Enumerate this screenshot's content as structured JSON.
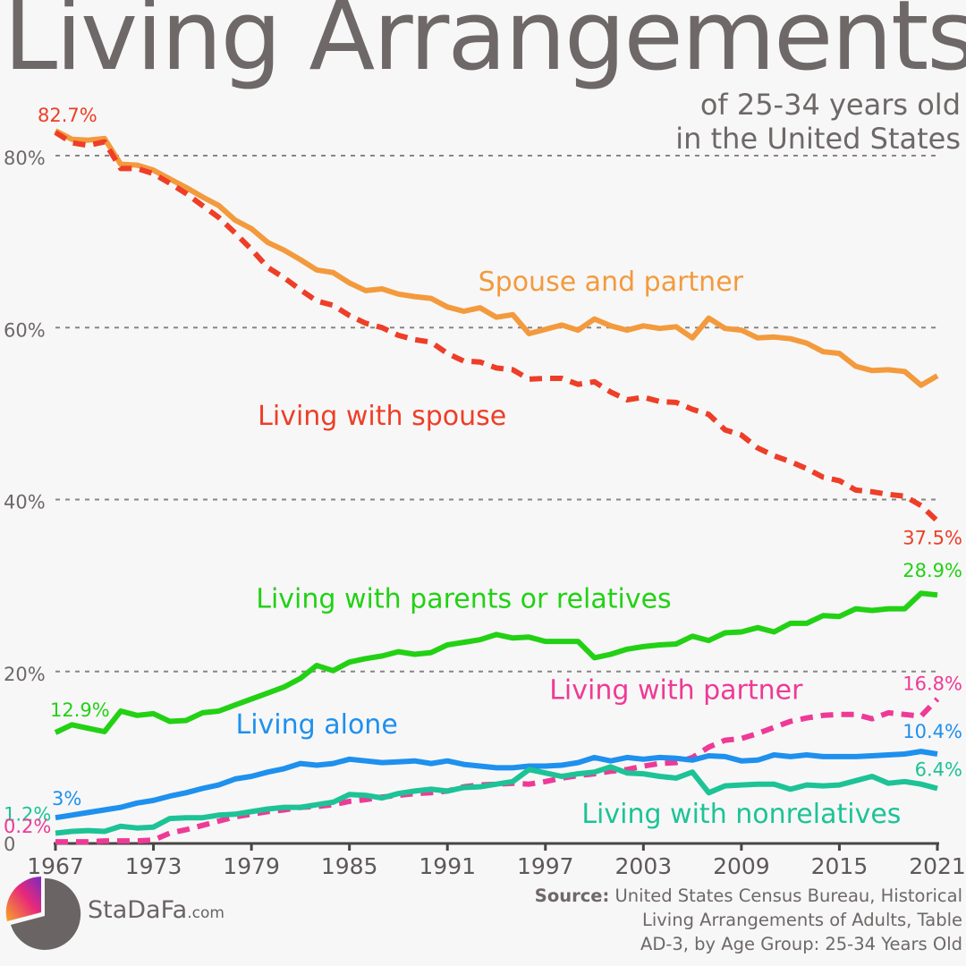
{
  "title": "Living Arrangements",
  "subtitle_line1": "of 25-34 years old",
  "subtitle_line2": "in the United States",
  "brand": {
    "name": "StaDaFa",
    "domain": ".com"
  },
  "source": {
    "label": "Source:",
    "line1": "United States Census Bureau, Historical",
    "line2": "Living Arrangements of Adults, Table",
    "line3": "AD-3, by Age Group: 25-34 Years Old"
  },
  "chart_data": {
    "type": "line",
    "x": [
      1967,
      1968,
      1969,
      1970,
      1971,
      1972,
      1973,
      1974,
      1975,
      1976,
      1977,
      1978,
      1979,
      1980,
      1981,
      1982,
      1983,
      1984,
      1985,
      1986,
      1987,
      1988,
      1989,
      1990,
      1991,
      1992,
      1993,
      1994,
      1995,
      1996,
      1997,
      1998,
      1999,
      2000,
      2001,
      2002,
      2003,
      2004,
      2005,
      2006,
      2007,
      2008,
      2009,
      2010,
      2011,
      2012,
      2013,
      2014,
      2015,
      2016,
      2017,
      2018,
      2019,
      2020,
      2021
    ],
    "xlim": [
      1967,
      2021
    ],
    "ylim": [
      0,
      85
    ],
    "y_ticks": [
      0,
      20,
      40,
      60,
      80
    ],
    "y_tick_labels": [
      "0",
      "20%",
      "40%",
      "60%",
      "80%"
    ],
    "x_ticks": [
      1967,
      1973,
      1979,
      1985,
      1991,
      1997,
      2003,
      2009,
      2015,
      2021
    ],
    "x_tick_labels": [
      "1967",
      "1973",
      "1979",
      "1985",
      "1991",
      "1997",
      "2003",
      "2009",
      "2015",
      "2021"
    ],
    "grid": "horizontal dashed",
    "series": [
      {
        "name": "Spouse and partner",
        "color": "#f39a3d",
        "dashed": false,
        "values": [
          82.9,
          81.9,
          81.8,
          82.0,
          79.0,
          78.9,
          78.3,
          77.3,
          76.3,
          75.2,
          74.2,
          72.5,
          71.5,
          69.9,
          69.0,
          67.9,
          66.7,
          66.4,
          65.2,
          64.3,
          64.5,
          63.9,
          63.6,
          63.4,
          62.4,
          61.9,
          62.3,
          61.2,
          61.5,
          59.3,
          59.8,
          60.3,
          59.7,
          61.0,
          60.2,
          59.7,
          60.2,
          59.9,
          60.1,
          58.8,
          61.1,
          59.9,
          59.7,
          58.8,
          58.9,
          58.7,
          58.2,
          57.2,
          57.0,
          55.5,
          55.0,
          55.1,
          54.9,
          53.3,
          54.4
        ],
        "label_pos": [
          2001,
          64.3
        ]
      },
      {
        "name": "Living with spouse",
        "color": "#ee3e27",
        "dashed": true,
        "values": [
          82.7,
          81.5,
          81.2,
          81.6,
          78.5,
          78.5,
          77.9,
          76.8,
          75.6,
          74.2,
          72.8,
          71.0,
          69.1,
          67.0,
          65.8,
          64.4,
          63.1,
          62.6,
          61.4,
          60.5,
          60.0,
          59.1,
          58.6,
          58.3,
          57.0,
          56.1,
          56.0,
          55.3,
          55.1,
          54.0,
          54.1,
          54.1,
          53.4,
          53.7,
          52.5,
          51.6,
          51.9,
          51.4,
          51.3,
          50.5,
          49.9,
          48.1,
          47.5,
          46.0,
          45.1,
          44.4,
          43.6,
          42.6,
          42.2,
          41.1,
          40.9,
          40.6,
          40.4,
          39.3,
          37.5
        ],
        "label_pos": [
          1987,
          48.7
        ]
      },
      {
        "name": "Living with parents or relatives",
        "color": "#22d114",
        "dashed": false,
        "values": [
          12.9,
          13.8,
          13.4,
          13.0,
          15.4,
          14.9,
          15.1,
          14.2,
          14.3,
          15.2,
          15.4,
          16.1,
          16.8,
          17.5,
          18.2,
          19.2,
          20.7,
          20.1,
          21.1,
          21.5,
          21.8,
          22.3,
          22.0,
          22.2,
          23.1,
          23.4,
          23.7,
          24.3,
          23.9,
          24.0,
          23.5,
          23.5,
          23.5,
          21.6,
          22.0,
          22.6,
          22.9,
          23.1,
          23.2,
          24.1,
          23.6,
          24.5,
          24.6,
          25.1,
          24.6,
          25.6,
          25.6,
          26.5,
          26.4,
          27.3,
          27.1,
          27.3,
          27.3,
          29.1,
          28.9
        ],
        "label_pos": [
          1992,
          27.4
        ]
      },
      {
        "name": "Living with partner",
        "color": "#ee3a96",
        "dashed": true,
        "values": [
          0.2,
          0.2,
          0.2,
          0.3,
          0.3,
          0.3,
          0.4,
          1.2,
          1.6,
          2.1,
          2.6,
          3.1,
          3.4,
          3.7,
          3.9,
          4.2,
          4.3,
          4.5,
          4.9,
          5.1,
          5.4,
          5.6,
          5.8,
          5.9,
          6.1,
          6.6,
          6.8,
          6.9,
          7.0,
          6.9,
          7.2,
          7.6,
          7.9,
          8.1,
          8.4,
          8.6,
          9.0,
          9.3,
          9.4,
          10.0,
          11.2,
          12.0,
          12.2,
          12.8,
          13.5,
          14.2,
          14.6,
          14.9,
          15.0,
          15.0,
          14.5,
          15.2,
          15.0,
          14.8,
          16.8
        ],
        "label_pos": [
          2005,
          16.8
        ]
      },
      {
        "name": "Living alone",
        "color": "#1e90ee",
        "dashed": false,
        "values": [
          3.0,
          3.3,
          3.6,
          3.9,
          4.2,
          4.7,
          5.0,
          5.5,
          5.9,
          6.4,
          6.8,
          7.5,
          7.8,
          8.3,
          8.7,
          9.3,
          9.1,
          9.3,
          9.8,
          9.6,
          9.4,
          9.5,
          9.6,
          9.3,
          9.6,
          9.2,
          9.0,
          8.8,
          8.8,
          9.0,
          9.0,
          9.1,
          9.4,
          10.0,
          9.6,
          10.0,
          9.8,
          10.0,
          9.9,
          9.7,
          10.2,
          10.1,
          9.6,
          9.7,
          10.3,
          10.1,
          10.3,
          10.1,
          10.1,
          10.1,
          10.2,
          10.3,
          10.4,
          10.7,
          10.4
        ],
        "label_pos": [
          1983,
          12.8
        ]
      },
      {
        "name": "Living with nonrelatives",
        "color": "#1dc396",
        "dashed": false,
        "values": [
          1.2,
          1.4,
          1.5,
          1.4,
          2.0,
          1.8,
          1.9,
          2.9,
          3.0,
          3.0,
          3.3,
          3.4,
          3.7,
          4.0,
          4.2,
          4.2,
          4.5,
          4.8,
          5.7,
          5.6,
          5.3,
          5.8,
          6.1,
          6.3,
          6.1,
          6.5,
          6.6,
          6.9,
          7.2,
          8.6,
          8.2,
          7.8,
          8.1,
          8.3,
          8.9,
          8.2,
          8.1,
          7.8,
          7.6,
          8.3,
          5.9,
          6.7,
          6.8,
          6.9,
          6.9,
          6.3,
          6.8,
          6.7,
          6.8,
          7.3,
          7.8,
          7.0,
          7.2,
          6.9,
          6.4
        ],
        "label_pos": [
          2009,
          2.4
        ]
      }
    ],
    "annotations": [
      {
        "text": "82.7%",
        "x": 1967,
        "y": 82.7,
        "color": "#ee3e27",
        "anchor": "start",
        "dx": -4,
        "dy": -12
      },
      {
        "text": "37.5%",
        "x": 2021,
        "y": 37.5,
        "color": "#ee3e27",
        "anchor": "end",
        "dx": 26,
        "dy": 26
      },
      {
        "text": "28.9%",
        "x": 2021,
        "y": 28.9,
        "color": "#22d114",
        "anchor": "end",
        "dx": 28,
        "dy": -20
      },
      {
        "text": "12.9%",
        "x": 1967,
        "y": 12.9,
        "color": "#22d114",
        "anchor": "start",
        "dx": -4,
        "dy": -18
      },
      {
        "text": "16.8%",
        "x": 2021,
        "y": 16.8,
        "color": "#ee3a96",
        "anchor": "end",
        "dx": 28,
        "dy": -10
      },
      {
        "text": "10.4%",
        "x": 2021,
        "y": 10.4,
        "color": "#1e90ee",
        "anchor": "end",
        "dx": 28,
        "dy": -18
      },
      {
        "text": "6.4%",
        "x": 2021,
        "y": 6.4,
        "color": "#1dc396",
        "anchor": "end",
        "dx": 28,
        "dy": -14
      },
      {
        "text": "3%",
        "x": 1967,
        "y": 3.0,
        "color": "#1e90ee",
        "anchor": "start",
        "dx": -2,
        "dy": -14
      },
      {
        "text": "1.2%",
        "x": 1967,
        "y": 1.2,
        "color": "#1dc396",
        "anchor": "end",
        "dx": -22,
        "dy": -14
      },
      {
        "text": "0.2%",
        "x": 1967,
        "y": 0.2,
        "color": "#ee3a96",
        "anchor": "end",
        "dx": -20,
        "dy": -10
      }
    ]
  }
}
